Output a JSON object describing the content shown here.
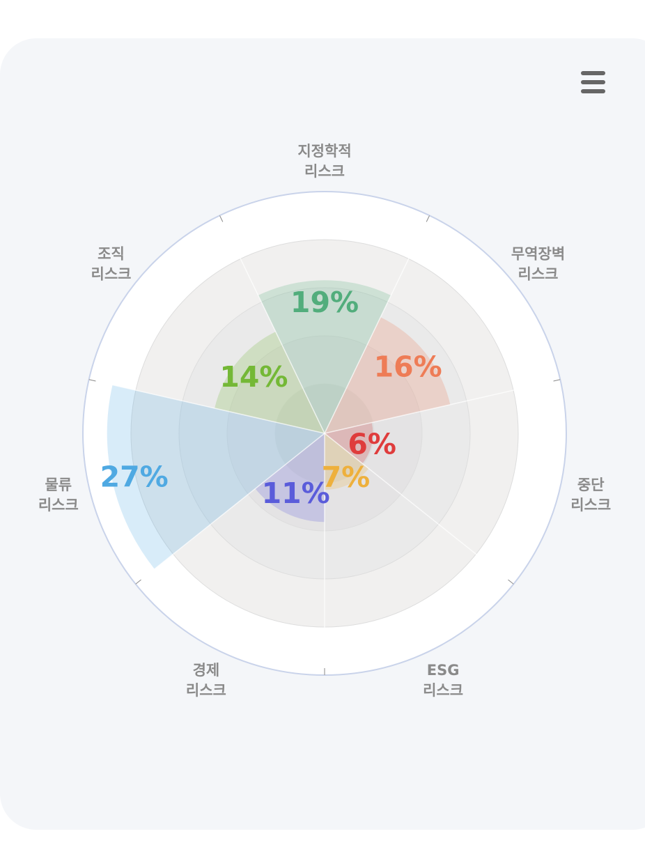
{
  "toolbar": {
    "menu_icon": "hamburger-menu-icon"
  },
  "chart_data": {
    "type": "polar-area",
    "title": "",
    "categories": [
      {
        "name": "지정학적",
        "sub": "리스크",
        "value": 19,
        "label": "19%",
        "color": "#52ad7c"
      },
      {
        "name": "무역장벽",
        "sub": "리스크",
        "value": 16,
        "label": "16%",
        "color": "#ee7c56"
      },
      {
        "name": "중단",
        "sub": "리스크",
        "value": 6,
        "label": "6%",
        "color": "#df3c3c"
      },
      {
        "name": "ESG",
        "sub": "리스크",
        "value": 7,
        "label": "7%",
        "color": "#eeb03c"
      },
      {
        "name": "경제",
        "sub": "리스크",
        "value": 11,
        "label": "11%",
        "color": "#5a5cda"
      },
      {
        "name": "물류",
        "sub": "리스크",
        "value": 27,
        "label": "27%",
        "color": "#4fa9e2"
      },
      {
        "name": "조직",
        "sub": "리스크",
        "value": 14,
        "label": "14%",
        "color": "#74b836"
      }
    ],
    "r_max": 30,
    "grid": true,
    "legend": "none"
  }
}
